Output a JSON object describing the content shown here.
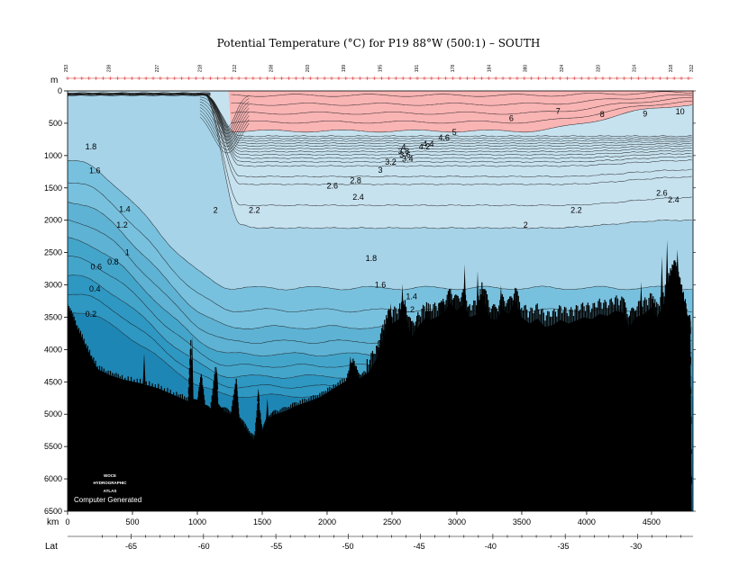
{
  "chart_data": {
    "type": "heatmap",
    "title": "Potential Temperature (°C) for P19 88°W (500:1) – SOUTH",
    "depth_axis": {
      "unit_label": "m",
      "range": [
        0,
        6500
      ],
      "ticks": [
        0,
        500,
        1000,
        1500,
        2000,
        2500,
        3000,
        3500,
        4000,
        4500,
        5000,
        5500,
        6000,
        6500
      ]
    },
    "distance_axis": {
      "unit_label": "km",
      "range": [
        0,
        4820
      ],
      "ticks": [
        0,
        500,
        1000,
        1500,
        2000,
        2500,
        3000,
        3500,
        4000,
        4500
      ]
    },
    "latitude_axis": {
      "label": "Lat",
      "ticks": [
        {
          "lat": -65,
          "km": 490
        },
        {
          "lat": -60,
          "km": 1050
        },
        {
          "lat": -55,
          "km": 1610
        },
        {
          "lat": -50,
          "km": 2160
        },
        {
          "lat": -45,
          "km": 2710
        },
        {
          "lat": -40,
          "km": 3260
        },
        {
          "lat": -35,
          "km": 3820
        },
        {
          "lat": -30,
          "km": 4380
        }
      ]
    },
    "stations": [
      {
        "label": "253",
        "km": 0
      },
      {
        "label": "238",
        "km": 330
      },
      {
        "label": "227",
        "km": 700
      },
      {
        "label": "218",
        "km": 1030
      },
      {
        "label": "212",
        "km": 1300
      },
      {
        "label": "208",
        "km": 1580
      },
      {
        "label": "203",
        "km": 1860
      },
      {
        "label": "199",
        "km": 2140
      },
      {
        "label": "195",
        "km": 2420
      },
      {
        "label": "191",
        "km": 2700
      },
      {
        "label": "178",
        "km": 2980
      },
      {
        "label": "184",
        "km": 3260
      },
      {
        "label": "380",
        "km": 3540
      },
      {
        "label": "324",
        "km": 3820
      },
      {
        "label": "320",
        "km": 4100
      },
      {
        "label": "314",
        "km": 4380
      },
      {
        "label": "318",
        "km": 4660
      },
      {
        "label": "312",
        "km": 4820
      }
    ],
    "contour_levels": [
      0.2,
      0.4,
      0.6,
      0.8,
      1,
      1.2,
      1.4,
      1.6,
      1.8,
      2,
      2.2,
      2.4,
      2.6,
      3,
      3.2,
      3.4,
      3.6,
      3.8,
      4,
      4.2,
      4.4,
      4.6,
      4.8,
      5,
      6,
      7,
      8,
      9,
      10
    ],
    "fill_bands": [
      {
        "from": 6,
        "to": 11,
        "color": "#f9b4b4"
      },
      {
        "from": 2,
        "to": 6,
        "color": "#c7e2ef"
      },
      {
        "from": 1.8,
        "to": 2,
        "color": "#a6d3e8"
      },
      {
        "from": 1.4,
        "to": 1.8,
        "color": "#78c1de"
      },
      {
        "from": 1.0,
        "to": 1.4,
        "color": "#5eb2d3"
      },
      {
        "from": 0.6,
        "to": 1.0,
        "color": "#44a5cb"
      },
      {
        "from": 0.2,
        "to": 0.6,
        "color": "#2e97c2"
      },
      {
        "from": -2,
        "to": 0.2,
        "color": "#1e86b4"
      }
    ],
    "contour_labels": [
      {
        "text": "10",
        "km": 4720,
        "depth": 330
      },
      {
        "text": "9",
        "km": 4450,
        "depth": 360
      },
      {
        "text": "8",
        "km": 4120,
        "depth": 370
      },
      {
        "text": "7",
        "km": 3780,
        "depth": 320
      },
      {
        "text": "6",
        "km": 3420,
        "depth": 430
      },
      {
        "text": "5",
        "km": 2980,
        "depth": 650
      },
      {
        "text": "4.6",
        "km": 2900,
        "depth": 730
      },
      {
        "text": "4.4",
        "km": 2780,
        "depth": 830
      },
      {
        "text": "4.2",
        "km": 2750,
        "depth": 870
      },
      {
        "text": "4",
        "km": 2590,
        "depth": 880
      },
      {
        "text": "3.8",
        "km": 2590,
        "depth": 940
      },
      {
        "text": "3.6",
        "km": 2600,
        "depth": 1000
      },
      {
        "text": "3.4",
        "km": 2620,
        "depth": 1060
      },
      {
        "text": "3.2",
        "km": 2490,
        "depth": 1110
      },
      {
        "text": "3",
        "km": 2410,
        "depth": 1230
      },
      {
        "text": "2.8",
        "km": 2220,
        "depth": 1390
      },
      {
        "text": "2.6",
        "km": 2040,
        "depth": 1480
      },
      {
        "text": "2.4",
        "km": 2240,
        "depth": 1650
      },
      {
        "text": "2.6",
        "km": 4580,
        "depth": 1590
      },
      {
        "text": "2.4",
        "km": 4670,
        "depth": 1690
      },
      {
        "text": "2.2",
        "km": 1440,
        "depth": 1850
      },
      {
        "text": "2.2",
        "km": 3920,
        "depth": 1850
      },
      {
        "text": "2",
        "km": 1140,
        "depth": 1850
      },
      {
        "text": "2",
        "km": 3530,
        "depth": 2080
      },
      {
        "text": "1.8",
        "km": 180,
        "depth": 870
      },
      {
        "text": "1.8",
        "km": 2340,
        "depth": 2600
      },
      {
        "text": "1.6",
        "km": 210,
        "depth": 1240
      },
      {
        "text": "1.6",
        "km": 2410,
        "depth": 3010
      },
      {
        "text": "1.4",
        "km": 440,
        "depth": 1840
      },
      {
        "text": "1.4",
        "km": 2650,
        "depth": 3190
      },
      {
        "text": "1.2",
        "km": 420,
        "depth": 2080
      },
      {
        "text": "1.2",
        "km": 2630,
        "depth": 3390
      },
      {
        "text": "1",
        "km": 460,
        "depth": 2510
      },
      {
        "text": "1",
        "km": 2700,
        "depth": 3530
      },
      {
        "text": "0.8",
        "km": 350,
        "depth": 2650
      },
      {
        "text": "0.8",
        "km": 2540,
        "depth": 3720
      },
      {
        "text": "0.6",
        "km": 220,
        "depth": 2730
      },
      {
        "text": "0.6",
        "km": 2430,
        "depth": 3910
      },
      {
        "text": "0.4",
        "km": 210,
        "depth": 3070
      },
      {
        "text": "0.2",
        "km": 180,
        "depth": 3460
      }
    ],
    "bathymetry": [
      [
        0,
        3330
      ],
      [
        60,
        3600
      ],
      [
        140,
        3950
      ],
      [
        230,
        4300
      ],
      [
        330,
        4400
      ],
      [
        420,
        4460
      ],
      [
        560,
        4520
      ],
      [
        700,
        4600
      ],
      [
        840,
        4720
      ],
      [
        930,
        4800
      ],
      [
        950,
        3900
      ],
      [
        960,
        4800
      ],
      [
        1000,
        4850
      ],
      [
        1030,
        4420
      ],
      [
        1060,
        4920
      ],
      [
        1100,
        4950
      ],
      [
        1140,
        4340
      ],
      [
        1160,
        4900
      ],
      [
        1200,
        4950
      ],
      [
        1260,
        5000
      ],
      [
        1300,
        4520
      ],
      [
        1320,
        5050
      ],
      [
        1380,
        5250
      ],
      [
        1440,
        5400
      ],
      [
        1470,
        4800
      ],
      [
        1500,
        5300
      ],
      [
        1540,
        5080
      ],
      [
        1600,
        5000
      ],
      [
        1680,
        4950
      ],
      [
        1760,
        4870
      ],
      [
        1860,
        4800
      ],
      [
        1960,
        4720
      ],
      [
        2050,
        4600
      ],
      [
        2150,
        4480
      ],
      [
        2200,
        4200
      ],
      [
        2250,
        4450
      ],
      [
        2320,
        4350
      ],
      [
        2380,
        4150
      ],
      [
        2430,
        3850
      ],
      [
        2470,
        3620
      ],
      [
        2500,
        3600
      ],
      [
        2560,
        3520
      ],
      [
        2600,
        3450
      ],
      [
        2650,
        3800
      ],
      [
        2700,
        3650
      ],
      [
        2760,
        3500
      ],
      [
        2800,
        3540
      ],
      [
        2860,
        3480
      ],
      [
        2900,
        3420
      ],
      [
        2950,
        3280
      ],
      [
        3000,
        3400
      ],
      [
        3050,
        3300
      ],
      [
        3100,
        3500
      ],
      [
        3160,
        3450
      ],
      [
        3200,
        3150
      ],
      [
        3250,
        3500
      ],
      [
        3300,
        3550
      ],
      [
        3350,
        3380
      ],
      [
        3400,
        3450
      ],
      [
        3450,
        3250
      ],
      [
        3500,
        3500
      ],
      [
        3560,
        3600
      ],
      [
        3620,
        3520
      ],
      [
        3680,
        3650
      ],
      [
        3740,
        3620
      ],
      [
        3800,
        3540
      ],
      [
        3860,
        3600
      ],
      [
        3920,
        3550
      ],
      [
        3980,
        3500
      ],
      [
        4040,
        3530
      ],
      [
        4100,
        3450
      ],
      [
        4160,
        3480
      ],
      [
        4220,
        3400
      ],
      [
        4280,
        3420
      ],
      [
        4330,
        3650
      ],
      [
        4380,
        3500
      ],
      [
        4440,
        3450
      ],
      [
        4500,
        3350
      ],
      [
        4540,
        3500
      ],
      [
        4600,
        3280
      ],
      [
        4640,
        3000
      ],
      [
        4680,
        2800
      ],
      [
        4720,
        3100
      ],
      [
        4760,
        3450
      ],
      [
        4790,
        3680
      ],
      [
        4800,
        3720
      ],
      [
        4810,
        6500
      ]
    ],
    "spikes": [
      {
        "km": 590,
        "depth": 4050
      },
      {
        "km": 940,
        "depth": 4350
      },
      {
        "km": 960,
        "depth": 3780
      },
      {
        "km": 1150,
        "depth": 4260
      },
      {
        "km": 1470,
        "depth": 4600
      },
      {
        "km": 1540,
        "depth": 4750
      },
      {
        "km": 2180,
        "depth": 4100
      },
      {
        "km": 2490,
        "depth": 3280
      },
      {
        "km": 2580,
        "depth": 2980
      },
      {
        "km": 3060,
        "depth": 2680
      },
      {
        "km": 3160,
        "depth": 2780
      },
      {
        "km": 3340,
        "depth": 3000
      },
      {
        "km": 4420,
        "depth": 2950
      },
      {
        "km": 4580,
        "depth": 2550
      },
      {
        "km": 4620,
        "depth": 2300
      },
      {
        "km": 4700,
        "depth": 2450
      }
    ],
    "logo_lines": [
      "WOCE",
      "HYDROGRAPHIC",
      "ATLAS"
    ],
    "footer_note": "Computer Generated"
  }
}
